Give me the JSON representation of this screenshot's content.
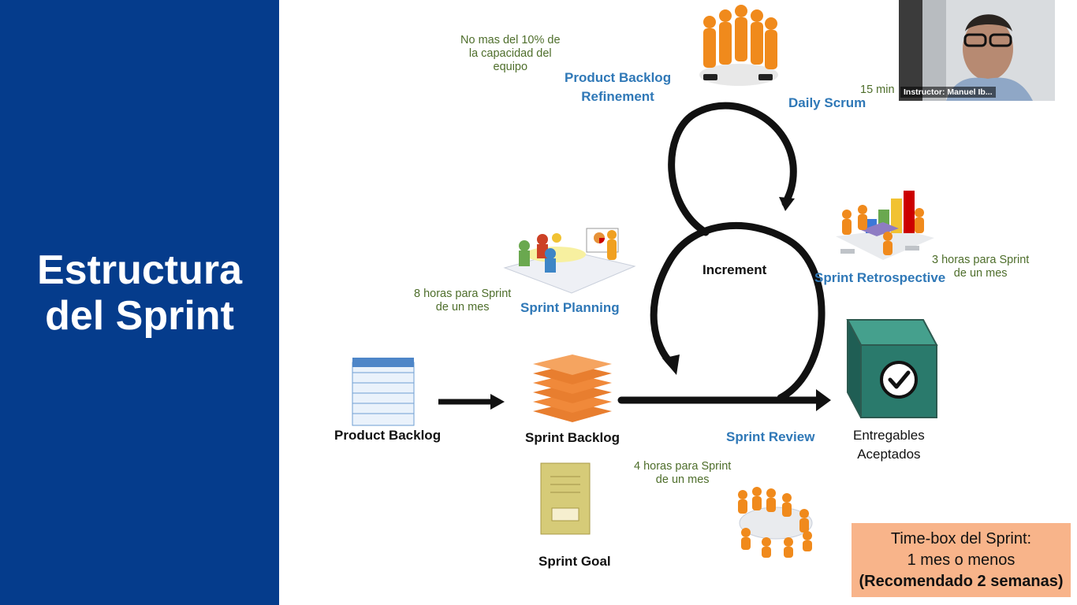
{
  "sidebar": {
    "title_line1": "Estructura",
    "title_line2": "del Sprint"
  },
  "labels": {
    "refinement_note": [
      "No mas del 10% de",
      "la capacidad del",
      "equipo"
    ],
    "refinement": [
      "Product Backlog",
      "Refinement"
    ],
    "daily_scrum": "Daily Scrum",
    "daily_scrum_note": "15 min",
    "increment": "Increment",
    "sprint_retrospective": "Sprint Retrospective",
    "retrospective_note": [
      "3 horas para Sprint",
      "de un mes"
    ],
    "planning_note": [
      "8 horas para Sprint",
      "de un mes"
    ],
    "sprint_planning": "Sprint Planning",
    "product_backlog": "Product Backlog",
    "sprint_backlog": "Sprint Backlog",
    "sprint_review": "Sprint Review",
    "review_note": [
      "4 horas para Sprint",
      "de un mes"
    ],
    "entregables": [
      "Entregables",
      "Aceptados"
    ],
    "sprint_goal": "Sprint Goal"
  },
  "webcam": {
    "label": "Instructor: Manuel Ib..."
  },
  "timebox": {
    "line1": "Time-box del Sprint:",
    "line2": "1 mes o menos",
    "line3": "(Recomendado 2 semanas)"
  },
  "colors": {
    "sidebar": "#053c8c",
    "label_blue": "#2f78b7",
    "note_green": "#4e6e2b",
    "timebox_bg": "#f8b48a",
    "box_teal": "#2a7a6c",
    "stack_orange": "#f0893a",
    "goal_yellow": "#d6cb78"
  }
}
